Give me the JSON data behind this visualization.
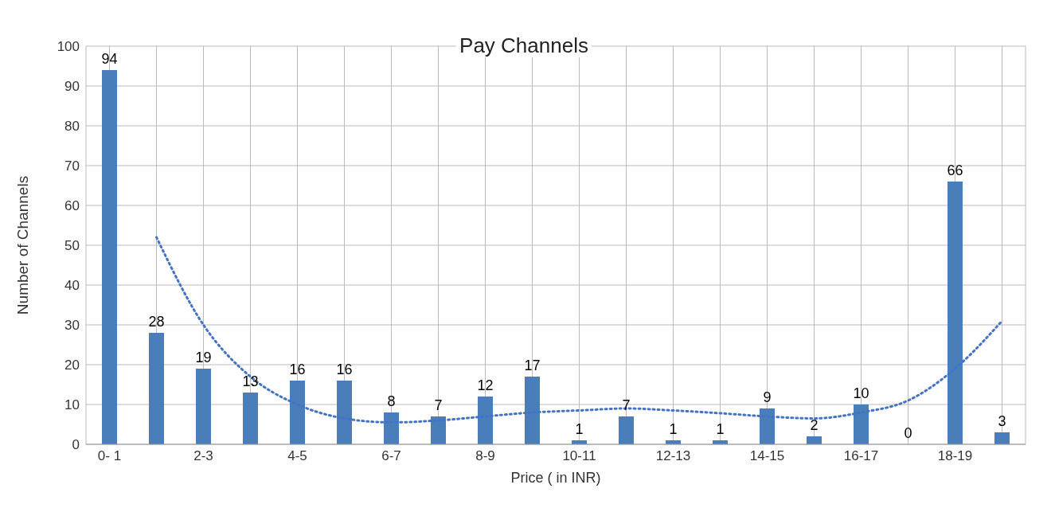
{
  "chart_data": {
    "type": "bar",
    "title": "Pay Channels",
    "xlabel": "Price ( in INR)",
    "ylabel": "Number of Channels",
    "categories": [
      "0- 1",
      null,
      "2-3",
      null,
      "4-5",
      null,
      "6-7",
      null,
      "8-9",
      null,
      "10-11",
      null,
      "12-13",
      null,
      "14-15",
      null,
      "16-17",
      null,
      "18-19",
      null
    ],
    "series": [
      {
        "color": "#4a7ebb",
        "values": [
          94,
          28,
          19,
          13,
          16,
          16,
          8,
          7,
          12,
          17,
          1,
          7,
          1,
          1,
          9,
          2,
          10,
          0,
          66,
          3
        ],
        "value_labels": [
          "94",
          "28",
          "19",
          "13",
          "16",
          "16",
          "8",
          "7",
          "12",
          "17",
          "1",
          "7",
          "1",
          "1",
          "9",
          "2",
          "10",
          "0",
          "66",
          "3"
        ]
      },
      {
        "type": "line",
        "color": "#4472c4",
        "line_style": "dotted",
        "values": [
          null,
          52,
          30,
          17,
          10,
          6.5,
          5.5,
          6,
          7,
          8,
          8.5,
          9,
          8.5,
          7.8,
          7,
          6.5,
          8,
          11,
          19,
          31
        ]
      }
    ],
    "ylim": [
      0,
      100
    ],
    "yticks": [
      0,
      10,
      20,
      30,
      40,
      50,
      60,
      70,
      80,
      90,
      100
    ],
    "grid": true,
    "legend": false
  }
}
